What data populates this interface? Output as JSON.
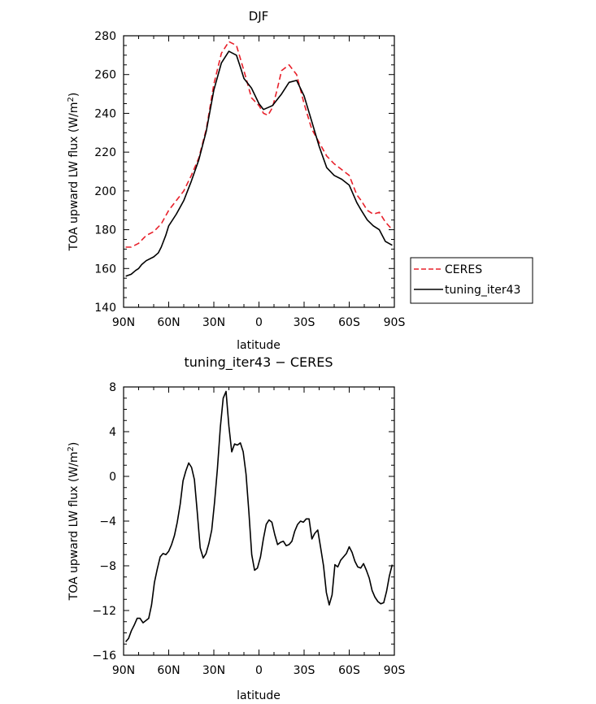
{
  "chart_data": [
    {
      "type": "line",
      "title": "DJF",
      "xlabel": "latitude",
      "ylabel_main": "TOA upward LW flux (W/m",
      "ylabel_sup": "2",
      "ylabel_tail": ")",
      "xlim": [
        90,
        -90
      ],
      "ylim": [
        140,
        280
      ],
      "xticks": [
        {
          "v": 90,
          "label": "90N"
        },
        {
          "v": 60,
          "label": "60N"
        },
        {
          "v": 30,
          "label": "30N"
        },
        {
          "v": 0,
          "label": "0"
        },
        {
          "v": -30,
          "label": "30S"
        },
        {
          "v": -60,
          "label": "60S"
        },
        {
          "v": -90,
          "label": "90S"
        }
      ],
      "yticks": [
        140,
        160,
        180,
        200,
        220,
        240,
        260,
        280
      ],
      "legend": {
        "position": "right"
      },
      "series": [
        {
          "name": "CERES",
          "color": "#e8202a",
          "dash": true,
          "x": [
            88.6,
            85,
            80,
            75,
            70,
            65,
            60,
            55,
            50,
            45,
            40,
            35,
            30,
            25,
            20,
            15,
            10,
            5,
            0,
            -3,
            -6,
            -9,
            -12,
            -15,
            -20,
            -25,
            -30,
            -35,
            -40,
            -45,
            -50,
            -55,
            -60,
            -65,
            -68,
            -72,
            -76,
            -80,
            -84,
            -88.6
          ],
          "y": [
            171,
            171,
            173,
            177,
            179,
            183,
            190,
            195,
            200,
            208,
            217,
            232,
            255,
            271,
            277,
            275,
            262,
            248,
            244,
            240,
            239,
            243,
            252,
            262,
            265,
            260,
            245,
            232,
            225,
            218,
            214,
            211,
            208,
            198,
            195,
            190,
            188,
            189,
            184,
            180
          ]
        },
        {
          "name": "tuning_iter43",
          "color": "#000000",
          "dash": false,
          "x": [
            88.6,
            85,
            82,
            80,
            78,
            75,
            70,
            67,
            65,
            62,
            60,
            55,
            50,
            45,
            40,
            35,
            30,
            25,
            20,
            15,
            12,
            10,
            5,
            0,
            -3,
            -6,
            -9,
            -12,
            -15,
            -20,
            -25,
            -30,
            -35,
            -40,
            -45,
            -50,
            -55,
            -60,
            -65,
            -68,
            -72,
            -76,
            -80,
            -84,
            -88.6
          ],
          "y": [
            156,
            157,
            159,
            160,
            162,
            164,
            166,
            168,
            171,
            177,
            182,
            188,
            195,
            205,
            216,
            231,
            252,
            266,
            272,
            270,
            263,
            258,
            253,
            245,
            242,
            243,
            244,
            247,
            250,
            256,
            257,
            249,
            236,
            223,
            212,
            208,
            206,
            203,
            194,
            190,
            185,
            182,
            180,
            174,
            172
          ]
        }
      ]
    },
    {
      "type": "line",
      "title": "tuning_iter43 − CERES",
      "xlabel": "latitude",
      "ylabel_main": "TOA upward LW flux (W/m",
      "ylabel_sup": "2",
      "ylabel_tail": ")",
      "xlim": [
        90,
        -90
      ],
      "ylim": [
        -16,
        8
      ],
      "xticks": [
        {
          "v": 90,
          "label": "90N"
        },
        {
          "v": 60,
          "label": "60N"
        },
        {
          "v": 30,
          "label": "30N"
        },
        {
          "v": 0,
          "label": "0"
        },
        {
          "v": -30,
          "label": "30S"
        },
        {
          "v": -60,
          "label": "60S"
        },
        {
          "v": -90,
          "label": "90S"
        }
      ],
      "yticks": [
        -16,
        -12,
        -8,
        -4,
        0,
        4,
        8
      ],
      "series": [
        {
          "color": "#000000",
          "dash": false,
          "x": [
            88.6,
            86.7,
            84.8,
            82.9,
            81,
            79.1,
            77.1,
            75.2,
            73.3,
            71.4,
            69.5,
            67.6,
            65.7,
            63.8,
            61.9,
            60,
            58.1,
            56.2,
            54.3,
            52.4,
            50.5,
            48.6,
            46.7,
            44.8,
            42.9,
            41,
            39.1,
            37.1,
            35.2,
            33.3,
            31.4,
            29.5,
            27.6,
            25.7,
            23.8,
            21.9,
            20,
            18.1,
            16.2,
            14.3,
            12.4,
            10.5,
            8.6,
            6.7,
            4.8,
            2.9,
            1,
            -1,
            -2.9,
            -4.8,
            -6.7,
            -8.6,
            -10.5,
            -12.4,
            -14.3,
            -16.2,
            -18.1,
            -20,
            -21.9,
            -23.8,
            -25.7,
            -27.6,
            -29.5,
            -31.4,
            -33.3,
            -35.2,
            -37.1,
            -39.1,
            -41,
            -42.9,
            -44.8,
            -46.7,
            -48.6,
            -50.5,
            -52.4,
            -54.3,
            -56.2,
            -58.1,
            -60,
            -61.9,
            -63.8,
            -65.7,
            -67.6,
            -69.5,
            -71.4,
            -73.3,
            -75.2,
            -77.1,
            -79.1,
            -81,
            -82.9,
            -84.8,
            -86.7,
            -88.6
          ],
          "y": [
            -14.8,
            -14.5,
            -13.8,
            -13.3,
            -12.7,
            -12.7,
            -13.1,
            -12.9,
            -12.7,
            -11.5,
            -9.5,
            -8.3,
            -7.2,
            -6.9,
            -7.0,
            -6.7,
            -6.1,
            -5.3,
            -4.1,
            -2.5,
            -0.4,
            0.5,
            1.2,
            0.8,
            -0.3,
            -3.2,
            -6.4,
            -7.3,
            -6.9,
            -6.0,
            -4.8,
            -2.3,
            0.7,
            4.4,
            7.0,
            7.6,
            4.5,
            2.2,
            2.9,
            2.8,
            3.0,
            2.2,
            0.2,
            -3.2,
            -7.0,
            -8.4,
            -8.2,
            -7.2,
            -5.6,
            -4.3,
            -3.9,
            -4.1,
            -5.2,
            -6.1,
            -5.9,
            -5.8,
            -6.2,
            -6.1,
            -5.8,
            -4.9,
            -4.3,
            -4.0,
            -4.1,
            -3.8,
            -3.8,
            -5.6,
            -5.1,
            -4.8,
            -6.4,
            -8.0,
            -10.4,
            -11.5,
            -10.6,
            -7.9,
            -8.1,
            -7.5,
            -7.2,
            -6.9,
            -6.3,
            -6.8,
            -7.6,
            -8.1,
            -8.2,
            -7.8,
            -8.4,
            -9.1,
            -10.2,
            -10.8,
            -11.2,
            -11.4,
            -11.3,
            -10.3,
            -8.9,
            -7.9
          ],
          "note_unused": ""
        }
      ]
    }
  ]
}
